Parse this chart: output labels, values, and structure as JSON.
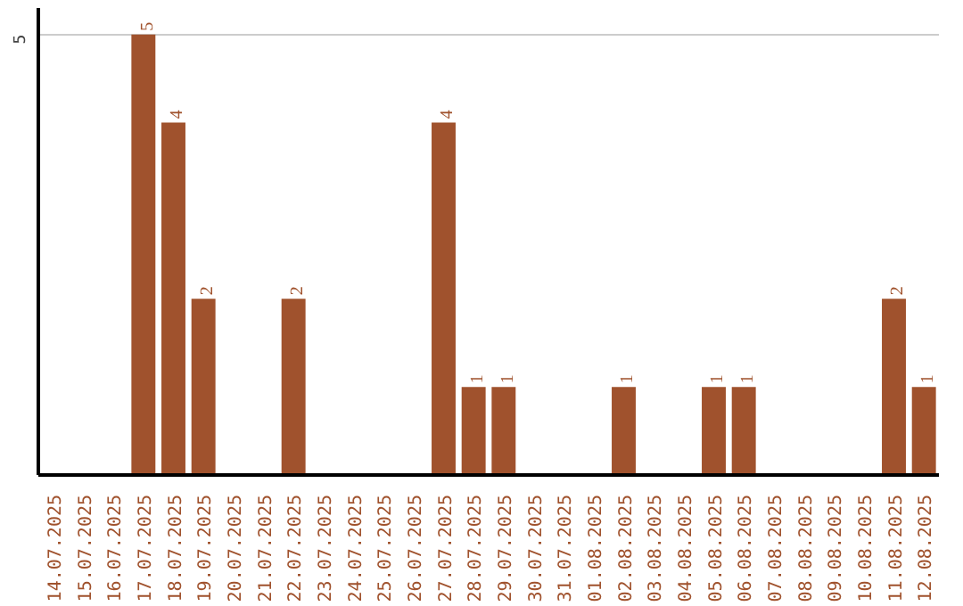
{
  "chart_data": {
    "type": "bar",
    "categories": [
      "14.07.2025",
      "15.07.2025",
      "16.07.2025",
      "17.07.2025",
      "18.07.2025",
      "19.07.2025",
      "20.07.2025",
      "21.07.2025",
      "22.07.2025",
      "23.07.2025",
      "24.07.2025",
      "25.07.2025",
      "26.07.2025",
      "27.07.2025",
      "28.07.2025",
      "29.07.2025",
      "30.07.2025",
      "31.07.2025",
      "01.08.2025",
      "02.08.2025",
      "03.08.2025",
      "04.08.2025",
      "05.08.2025",
      "06.08.2025",
      "07.08.2025",
      "08.08.2025",
      "09.08.2025",
      "10.08.2025",
      "11.08.2025",
      "12.08.2025"
    ],
    "values": [
      0,
      0,
      0,
      5,
      4,
      2,
      0,
      0,
      2,
      0,
      0,
      0,
      0,
      4,
      1,
      1,
      0,
      0,
      0,
      1,
      0,
      0,
      1,
      1,
      0,
      0,
      0,
      0,
      2,
      1
    ],
    "value_labels": [
      null,
      null,
      null,
      "5",
      "4",
      "2",
      null,
      null,
      "2",
      null,
      null,
      null,
      null,
      "4",
      "1",
      "1",
      null,
      null,
      null,
      "1",
      null,
      null,
      "1",
      "1",
      null,
      null,
      null,
      null,
      "2",
      "1"
    ],
    "color": "#a0522d",
    "ylim": [
      0,
      5.3
    ],
    "yticks": [
      5
    ],
    "grid": "y"
  }
}
